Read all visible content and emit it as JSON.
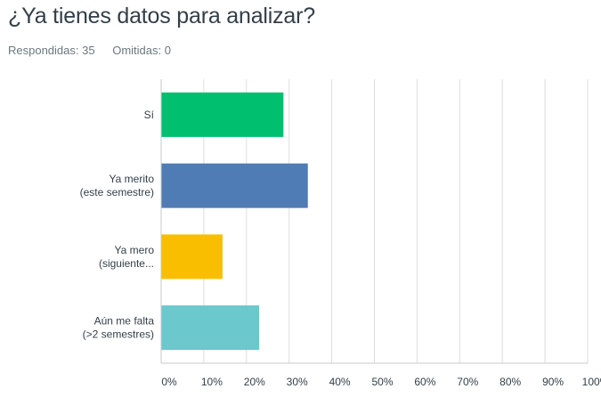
{
  "question": {
    "title": "¿Ya tienes datos para analizar?",
    "answered_label": "Respondidas: 35",
    "skipped_label": "Omitidas: 0"
  },
  "chart_data": {
    "type": "bar",
    "orientation": "horizontal",
    "categories": [
      [
        "Sí"
      ],
      [
        "Ya merito",
        "(este semestre)"
      ],
      [
        "Ya mero",
        "(siguiente..."
      ],
      [
        "Aún me falta",
        "(>2 semestres)"
      ]
    ],
    "values": [
      28.57,
      34.29,
      14.29,
      22.86
    ],
    "colors": [
      "#00bf6f",
      "#507cb6",
      "#f9be00",
      "#6bc8cd"
    ],
    "xlim": [
      0,
      100
    ],
    "x_ticks": [
      0,
      10,
      20,
      30,
      40,
      50,
      60,
      70,
      80,
      90,
      100
    ],
    "x_tick_labels": [
      "0%",
      "10%",
      "20%",
      "30%",
      "40%",
      "50%",
      "60%",
      "70%",
      "80%",
      "90%",
      "100%"
    ],
    "grid": true,
    "legend": "none"
  }
}
